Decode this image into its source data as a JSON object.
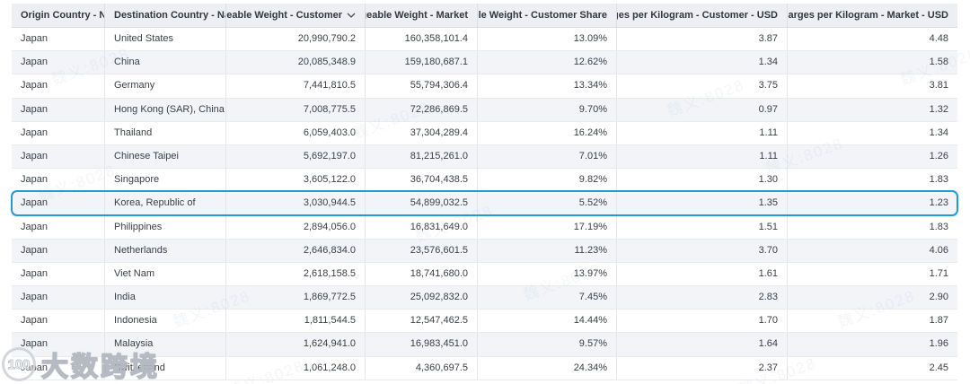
{
  "table": {
    "columns": [
      {
        "label": "Origin Country - Name",
        "align": "left",
        "sorted": false
      },
      {
        "label": "Destination Country - Name",
        "align": "left",
        "sorted": false
      },
      {
        "label": "Chargeable Weight - Customer",
        "align": "right",
        "sorted": true
      },
      {
        "label": "Chargeable Weight - Market",
        "align": "right",
        "sorted": false
      },
      {
        "label": "Chargeable Weight - Customer Share",
        "align": "right",
        "sorted": false
      },
      {
        "label": "Total Charges per Kilogram - Customer - USD",
        "align": "right",
        "sorted": false
      },
      {
        "label": "Total Charges per Kilogram - Market - USD",
        "align": "right",
        "sorted": false
      }
    ],
    "rows": [
      [
        "Japan",
        "United States",
        "20,990,790.2",
        "160,358,101.4",
        "13.09%",
        "3.87",
        "4.48"
      ],
      [
        "Japan",
        "China",
        "20,085,348.9",
        "159,180,687.1",
        "12.62%",
        "1.34",
        "1.58"
      ],
      [
        "Japan",
        "Germany",
        "7,441,810.5",
        "55,794,306.4",
        "13.34%",
        "3.75",
        "3.81"
      ],
      [
        "Japan",
        "Hong Kong (SAR), China",
        "7,008,775.5",
        "72,286,869.5",
        "9.70%",
        "0.97",
        "1.32"
      ],
      [
        "Japan",
        "Thailand",
        "6,059,403.0",
        "37,304,289.4",
        "16.24%",
        "1.11",
        "1.34"
      ],
      [
        "Japan",
        "Chinese Taipei",
        "5,692,197.0",
        "81,215,261.0",
        "7.01%",
        "1.11",
        "1.26"
      ],
      [
        "Japan",
        "Singapore",
        "3,605,122.0",
        "36,704,438.5",
        "9.82%",
        "1.30",
        "1.83"
      ],
      [
        "Japan",
        "Korea, Republic of",
        "3,030,944.5",
        "54,899,032.5",
        "5.52%",
        "1.35",
        "1.23"
      ],
      [
        "Japan",
        "Philippines",
        "2,894,056.0",
        "16,831,649.0",
        "17.19%",
        "1.51",
        "1.83"
      ],
      [
        "Japan",
        "Netherlands",
        "2,646,834.0",
        "23,576,601.5",
        "11.23%",
        "3.70",
        "4.06"
      ],
      [
        "Japan",
        "Viet Nam",
        "2,618,158.5",
        "18,741,680.0",
        "13.97%",
        "1.61",
        "1.71"
      ],
      [
        "Japan",
        "India",
        "1,869,772.5",
        "25,092,832.0",
        "7.45%",
        "2.83",
        "2.90"
      ],
      [
        "Japan",
        "Indonesia",
        "1,811,544.5",
        "12,547,462.5",
        "14.44%",
        "1.70",
        "1.87"
      ],
      [
        "Japan",
        "Malaysia",
        "1,624,941.0",
        "16,983,451.0",
        "9.57%",
        "1.64",
        "1.96"
      ],
      [
        "Japan",
        "Switzerland",
        "1,061,248.0",
        "4,360,697.5",
        "24.34%",
        "2.37",
        "2.45"
      ]
    ],
    "highlighted_row_index": 7
  },
  "watermark": {
    "diagonal_text": "魏义:8028",
    "logo_badge": "100",
    "logo_text": "大数跨境"
  },
  "colors": {
    "highlight_border": "#1f9cd8",
    "header_bg": "#edeff2",
    "alt_row_bg": "#f2f4f7"
  }
}
